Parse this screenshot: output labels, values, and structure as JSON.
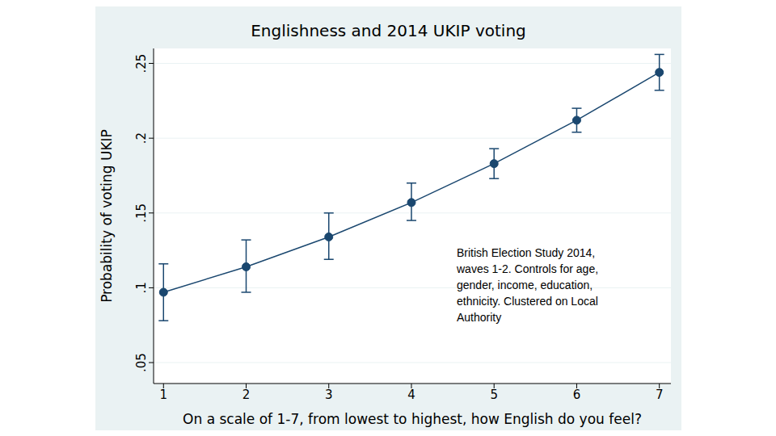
{
  "chart_data": {
    "type": "line",
    "title": "Englishness and 2014 UKIP voting",
    "x_label": "On a scale of 1-7, from lowest to highest, how English do you feel?",
    "y_label": "Probability of voting UKIP",
    "x": [
      1,
      2,
      3,
      4,
      5,
      6,
      7
    ],
    "values": [
      0.097,
      0.114,
      0.134,
      0.157,
      0.183,
      0.212,
      0.244
    ],
    "ci_lower": [
      0.078,
      0.097,
      0.119,
      0.145,
      0.173,
      0.204,
      0.232
    ],
    "ci_upper": [
      0.116,
      0.132,
      0.15,
      0.17,
      0.193,
      0.22,
      0.256
    ],
    "color": "#1a476f",
    "marker": "circle",
    "xlim": [
      0.88,
      7.14
    ],
    "xticks": [
      1,
      2,
      3,
      4,
      5,
      6,
      7
    ],
    "ylim": [
      0.036,
      0.26
    ],
    "yticks": [
      {
        "value": 0.05,
        "label": ".05"
      },
      {
        "value": 0.1,
        "label": ".1"
      },
      {
        "value": 0.15,
        "label": ".15"
      },
      {
        "value": 0.2,
        "label": ".2"
      },
      {
        "value": 0.25,
        "label": ".25"
      }
    ],
    "grid": true,
    "annotation": [
      "British Election Study 2014,",
      "waves 1-2. Controls for age,",
      "gender, income, education,",
      "ethnicity. Clustered on Local",
      "Authority"
    ]
  }
}
